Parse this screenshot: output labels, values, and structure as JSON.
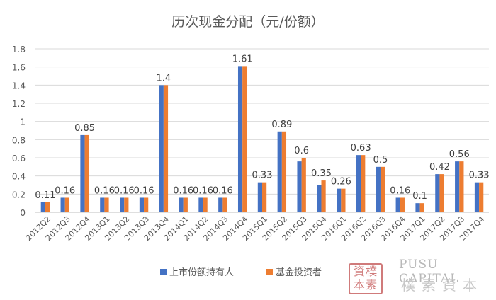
{
  "chart_data": {
    "type": "bar",
    "title": "历次现金分配（元/份额）",
    "categories": [
      "2012Q2",
      "2012Q3",
      "2012Q4",
      "2013Q1",
      "2013Q2",
      "2013Q3",
      "2013Q4",
      "2014Q1",
      "2014Q2",
      "2014Q3",
      "2014Q4",
      "2015Q1",
      "2015Q2",
      "2015Q3",
      "2015Q4",
      "2016Q1",
      "2016Q2",
      "2016Q3",
      "2016Q4",
      "2017Q1",
      "2017Q2",
      "2017Q3",
      "2017Q4"
    ],
    "series": [
      {
        "name": "上市份额持有人",
        "color": "#4472C4",
        "values": [
          0.11,
          0.16,
          0.85,
          0.16,
          0.16,
          0.16,
          1.4,
          0.16,
          0.16,
          0.16,
          1.61,
          0.33,
          0.89,
          0.56,
          0.3,
          0.26,
          0.63,
          0.5,
          0.16,
          0.1,
          0.42,
          0.56,
          0.33
        ]
      },
      {
        "name": "基金投资者",
        "color": "#ED7D31",
        "values": [
          0.11,
          0.16,
          0.85,
          0.16,
          0.16,
          0.16,
          1.4,
          0.16,
          0.16,
          0.16,
          1.61,
          0.33,
          0.89,
          0.6,
          0.35,
          0.26,
          0.63,
          0.5,
          0.16,
          0.1,
          0.42,
          0.56,
          0.33
        ]
      }
    ],
    "data_labels": [
      "0.11",
      "0.16",
      "0.85",
      "0.16",
      "0.16",
      "0.16",
      "1.4",
      "0.16",
      "0.16",
      "0.16",
      "1.61",
      "0.33",
      "0.89",
      "0.6",
      "0.35",
      "0.26",
      "0.63",
      "0.5",
      "0.16",
      "0.1",
      "0.42",
      "0.56",
      "0.33"
    ],
    "ylim": [
      0,
      1.8
    ],
    "yticks": [
      "0",
      "0.2",
      "0.4",
      "0.6",
      "0.8",
      "1",
      "1.2",
      "1.4",
      "1.6",
      "1.8"
    ],
    "grid": true,
    "legend_position": "bottom"
  },
  "watermark": {
    "seal_text": "資樸本素",
    "brand_text": "PUSU CAPITAL",
    "brand_cn": "樸素資本",
    "color": "#c86464"
  }
}
